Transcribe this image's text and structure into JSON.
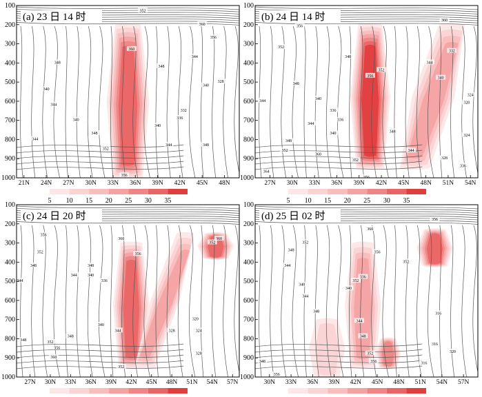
{
  "colorbar": {
    "ticks": [
      "5",
      "10",
      "15",
      "20",
      "25",
      "30",
      "35"
    ],
    "colors": [
      "#fde6e6",
      "#fbd3d3",
      "#f8bdbd",
      "#f4a2a2",
      "#ef8585",
      "#e96565",
      "#e03d3d"
    ]
  },
  "chart_data": [
    {
      "type": "heatmap",
      "title": "(a) 23 日 14 时",
      "xticks": [
        "21N",
        "24N",
        "27N",
        "30N",
        "33N",
        "36N",
        "39N",
        "42N",
        "45N",
        "48N"
      ],
      "yticks": [
        "100",
        "200",
        "300",
        "400",
        "500",
        "600",
        "700",
        "800",
        "900",
        "1000"
      ],
      "xlim": [
        20,
        50
      ],
      "ylim": [
        1000,
        100
      ],
      "contour_labels": [
        {
          "text": "352",
          "lat": 37.0,
          "p": 130
        },
        {
          "text": "360",
          "lat": 35.5,
          "p": 330
        },
        {
          "text": "348",
          "lat": 25.5,
          "p": 400
        },
        {
          "text": "340",
          "lat": 24.0,
          "p": 540
        },
        {
          "text": "344",
          "lat": 25.0,
          "p": 620
        },
        {
          "text": "340",
          "lat": 28.0,
          "p": 700
        },
        {
          "text": "344",
          "lat": 22.5,
          "p": 800
        },
        {
          "text": "352",
          "lat": 32.0,
          "p": 850
        },
        {
          "text": "348",
          "lat": 30.5,
          "p": 770
        },
        {
          "text": "356",
          "lat": 34.5,
          "p": 990
        },
        {
          "text": "348",
          "lat": 39.5,
          "p": 420
        },
        {
          "text": "344",
          "lat": 44.0,
          "p": 370
        },
        {
          "text": "340",
          "lat": 39.0,
          "p": 730
        },
        {
          "text": "344",
          "lat": 40.5,
          "p": 830
        },
        {
          "text": "336",
          "lat": 42.0,
          "p": 690
        },
        {
          "text": "332",
          "lat": 42.5,
          "p": 650
        },
        {
          "text": "360",
          "lat": 45.0,
          "p": 200
        },
        {
          "text": "356",
          "lat": 46.5,
          "p": 270
        },
        {
          "text": "340",
          "lat": 45.5,
          "p": 520
        },
        {
          "text": "328",
          "lat": 47.5,
          "p": 500
        },
        {
          "text": "348",
          "lat": 45.5,
          "p": 830
        }
      ],
      "shading": [
        {
          "lat": 35.0,
          "p_top": 200,
          "p_bottom": 1000,
          "max": 30,
          "width": 1.6
        }
      ]
    },
    {
      "type": "heatmap",
      "title": "(b) 24 日 14 时",
      "xticks": [
        "27N",
        "30N",
        "33N",
        "36N",
        "39N",
        "42N",
        "45N",
        "48N",
        "51N",
        "54N"
      ],
      "yticks": [
        "100",
        "200",
        "300",
        "400",
        "500",
        "600",
        "700",
        "800",
        "900",
        "1000"
      ],
      "xlim": [
        25,
        55
      ],
      "ylim": [
        1000,
        100
      ],
      "contour_labels": [
        {
          "text": "360",
          "lat": 50.5,
          "p": 180
        },
        {
          "text": "356",
          "lat": 31.0,
          "p": 210
        },
        {
          "text": "352",
          "lat": 28.5,
          "p": 320
        },
        {
          "text": "348",
          "lat": 37.5,
          "p": 370
        },
        {
          "text": "348",
          "lat": 30.5,
          "p": 510
        },
        {
          "text": "344",
          "lat": 26.0,
          "p": 600
        },
        {
          "text": "340",
          "lat": 33.5,
          "p": 590
        },
        {
          "text": "336",
          "lat": 35.5,
          "p": 650
        },
        {
          "text": "336",
          "lat": 36.5,
          "p": 700
        },
        {
          "text": "340",
          "lat": 35.5,
          "p": 770
        },
        {
          "text": "344",
          "lat": 32.5,
          "p": 720
        },
        {
          "text": "348",
          "lat": 29.5,
          "p": 810
        },
        {
          "text": "352",
          "lat": 29.0,
          "p": 860
        },
        {
          "text": "360",
          "lat": 33.5,
          "p": 880
        },
        {
          "text": "356",
          "lat": 40.5,
          "p": 470
        },
        {
          "text": "352",
          "lat": 42.0,
          "p": 440
        },
        {
          "text": "348",
          "lat": 43.5,
          "p": 760
        },
        {
          "text": "344",
          "lat": 46.0,
          "p": 860
        },
        {
          "text": "352",
          "lat": 38.5,
          "p": 910
        },
        {
          "text": "356",
          "lat": 40.0,
          "p": 1000
        },
        {
          "text": "344",
          "lat": 48.5,
          "p": 400
        },
        {
          "text": "340",
          "lat": 50.0,
          "p": 480
        },
        {
          "text": "332",
          "lat": 51.5,
          "p": 340
        },
        {
          "text": "324",
          "lat": 54.0,
          "p": 570
        },
        {
          "text": "320",
          "lat": 53.5,
          "p": 610
        },
        {
          "text": "324",
          "lat": 53.5,
          "p": 780
        },
        {
          "text": "328",
          "lat": 50.5,
          "p": 900
        },
        {
          "text": "336",
          "lat": 53.0,
          "p": 940
        },
        {
          "text": "364",
          "lat": 26.5,
          "p": 970
        }
      ],
      "shading": [
        {
          "lat": 40.5,
          "p_top": 200,
          "p_bottom": 950,
          "max": 35,
          "width": 1.5
        },
        {
          "lat": 49.0,
          "p_top": 200,
          "p_bottom": 950,
          "max": 20,
          "width": 1.6,
          "tilt": 5.0
        }
      ]
    },
    {
      "type": "heatmap",
      "title": "(c) 24 日 20 时",
      "xticks": [
        "27N",
        "30N",
        "33N",
        "36N",
        "39N",
        "42N",
        "45N",
        "48N",
        "51N",
        "54N",
        "57N"
      ],
      "yticks": [
        "100",
        "200",
        "300",
        "400",
        "500",
        "600",
        "700",
        "800",
        "900",
        "1000"
      ],
      "xlim": [
        25,
        58
      ],
      "ylim": [
        1000,
        100
      ],
      "contour_labels": [
        {
          "text": "356",
          "lat": 29.0,
          "p": 260
        },
        {
          "text": "360",
          "lat": 40.5,
          "p": 280
        },
        {
          "text": "352",
          "lat": 28.5,
          "p": 350
        },
        {
          "text": "348",
          "lat": 27.5,
          "p": 420
        },
        {
          "text": "348",
          "lat": 36.0,
          "p": 420
        },
        {
          "text": "344",
          "lat": 33.5,
          "p": 470
        },
        {
          "text": "344",
          "lat": 25.5,
          "p": 500
        },
        {
          "text": "340",
          "lat": 36.0,
          "p": 470
        },
        {
          "text": "336",
          "lat": 38.0,
          "p": 500
        },
        {
          "text": "356",
          "lat": 43.0,
          "p": 360
        },
        {
          "text": "340",
          "lat": 37.5,
          "p": 730
        },
        {
          "text": "344",
          "lat": 40.0,
          "p": 760
        },
        {
          "text": "348",
          "lat": 26.0,
          "p": 810
        },
        {
          "text": "352",
          "lat": 30.0,
          "p": 820
        },
        {
          "text": "348",
          "lat": 33.0,
          "p": 790
        },
        {
          "text": "356",
          "lat": 31.0,
          "p": 850
        },
        {
          "text": "360",
          "lat": 30.5,
          "p": 900
        },
        {
          "text": "352",
          "lat": 40.5,
          "p": 950
        },
        {
          "text": "360",
          "lat": 55.0,
          "p": 280
        },
        {
          "text": "328",
          "lat": 48.0,
          "p": 760
        },
        {
          "text": "324",
          "lat": 52.0,
          "p": 760
        },
        {
          "text": "320",
          "lat": 51.5,
          "p": 700
        },
        {
          "text": "328",
          "lat": 52.0,
          "p": 880
        },
        {
          "text": "352",
          "lat": 54.0,
          "p": 300
        }
      ],
      "shading": [
        {
          "lat": 42.0,
          "p_top": 300,
          "p_bottom": 950,
          "max": 30,
          "width": 1.5
        },
        {
          "lat": 47.0,
          "p_top": 250,
          "p_bottom": 950,
          "max": 20,
          "width": 1.2,
          "tilt": 6.0
        },
        {
          "lat": 54.5,
          "p_top": 250,
          "p_bottom": 380,
          "max": 30,
          "width": 1.5
        }
      ]
    },
    {
      "type": "heatmap",
      "title": "(d) 25 日 02 时",
      "xticks": [
        "30N",
        "33N",
        "36N",
        "39N",
        "42N",
        "45N",
        "48N",
        "51N",
        "54N",
        "57N"
      ],
      "yticks": [
        "100",
        "200",
        "300",
        "400",
        "500",
        "600",
        "700",
        "800",
        "900",
        "1000"
      ],
      "xlim": [
        28,
        59
      ],
      "ylim": [
        1000,
        100
      ],
      "contour_labels": [
        {
          "text": "356",
          "lat": 38.0,
          "p": 180
        },
        {
          "text": "360",
          "lat": 44.0,
          "p": 230
        },
        {
          "text": "352",
          "lat": 35.0,
          "p": 300
        },
        {
          "text": "348",
          "lat": 33.0,
          "p": 340
        },
        {
          "text": "356",
          "lat": 45.0,
          "p": 350
        },
        {
          "text": "344",
          "lat": 32.5,
          "p": 420
        },
        {
          "text": "340",
          "lat": 34.5,
          "p": 520
        },
        {
          "text": "344",
          "lat": 35.0,
          "p": 580
        },
        {
          "text": "348",
          "lat": 36.5,
          "p": 660
        },
        {
          "text": "352",
          "lat": 42.0,
          "p": 500
        },
        {
          "text": "336",
          "lat": 43.0,
          "p": 480
        },
        {
          "text": "340",
          "lat": 41.0,
          "p": 540
        },
        {
          "text": "344",
          "lat": 42.5,
          "p": 710
        },
        {
          "text": "348",
          "lat": 43.0,
          "p": 790
        },
        {
          "text": "352",
          "lat": 44.0,
          "p": 880
        },
        {
          "text": "356",
          "lat": 44.5,
          "p": 920
        },
        {
          "text": "348",
          "lat": 29.0,
          "p": 920
        },
        {
          "text": "356",
          "lat": 31.0,
          "p": 990
        },
        {
          "text": "352",
          "lat": 49.0,
          "p": 400
        },
        {
          "text": "356",
          "lat": 53.0,
          "p": 180
        },
        {
          "text": "316",
          "lat": 53.5,
          "p": 670
        },
        {
          "text": "316",
          "lat": 53.0,
          "p": 830
        },
        {
          "text": "320",
          "lat": 55.5,
          "p": 870
        },
        {
          "text": "316",
          "lat": 51.5,
          "p": 930
        }
      ],
      "shading": [
        {
          "lat": 43.0,
          "p_top": 300,
          "p_bottom": 950,
          "max": 20,
          "width": 1.4
        },
        {
          "lat": 38.0,
          "p_top": 700,
          "p_bottom": 1000,
          "max": 10,
          "width": 1.4
        },
        {
          "lat": 46.5,
          "p_top": 800,
          "p_bottom": 950,
          "max": 25,
          "width": 1.0
        },
        {
          "lat": 53.0,
          "p_top": 230,
          "p_bottom": 420,
          "max": 30,
          "width": 1.4
        }
      ]
    }
  ]
}
